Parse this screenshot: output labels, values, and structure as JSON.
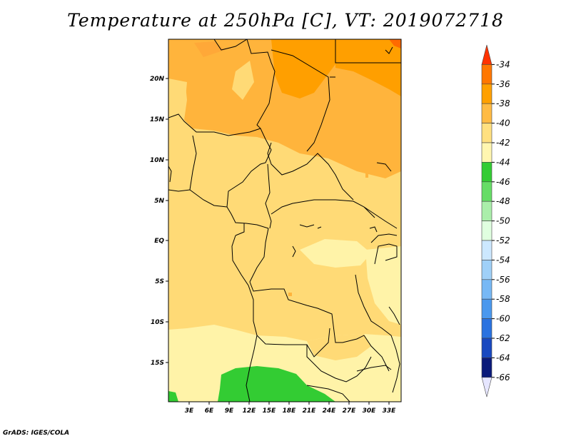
{
  "title": "Temperature at 250hPa [C], VT: 2019072718",
  "credit": "GrADS: IGES/COLA",
  "map": {
    "lon_labels": [
      "3E",
      "6E",
      "9E",
      "12E",
      "15E",
      "18E",
      "21E",
      "24E",
      "27E",
      "30E",
      "33E"
    ],
    "lat_labels": [
      "20N",
      "15N",
      "10N",
      "5N",
      "EQ",
      "5S",
      "10S",
      "15S"
    ]
  },
  "colorbar": {
    "labels": [
      "-34",
      "-36",
      "-38",
      "-40",
      "-42",
      "-44",
      "-46",
      "-48",
      "-50",
      "-52",
      "-54",
      "-56",
      "-58",
      "-60",
      "-62",
      "-64",
      "-66"
    ],
    "colors": [
      "#ff3300",
      "#ff7700",
      "#ffa000",
      "#ffbb44",
      "#ffe080",
      "#fff6b0",
      "#33cc33",
      "#66dd66",
      "#aaeeaa",
      "#e0ffe0",
      "#cce8ff",
      "#9fd0f8",
      "#77b8f5",
      "#4a98ee",
      "#2a72e0",
      "#1848c0",
      "#0a1a7a",
      "#e6e6ff"
    ]
  },
  "palette": {
    "t36": "#ff9f00",
    "t38": "#ffb43c",
    "t40": "#ffda76",
    "t42": "#fff3a8",
    "t44": "#33cc33"
  }
}
